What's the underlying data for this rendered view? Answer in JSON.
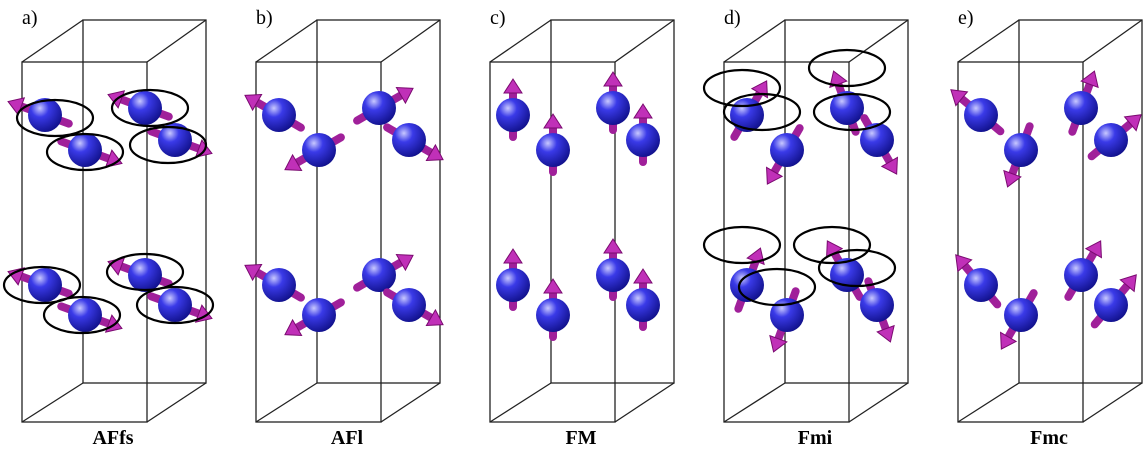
{
  "panels": [
    {
      "letter": "a)",
      "name": "AFfs"
    },
    {
      "letter": "b)",
      "name": "AFl"
    },
    {
      "letter": "c)",
      "name": "FM"
    },
    {
      "letter": "d)",
      "name": "Fmi"
    },
    {
      "letter": "e)",
      "name": "Fmc"
    }
  ]
}
